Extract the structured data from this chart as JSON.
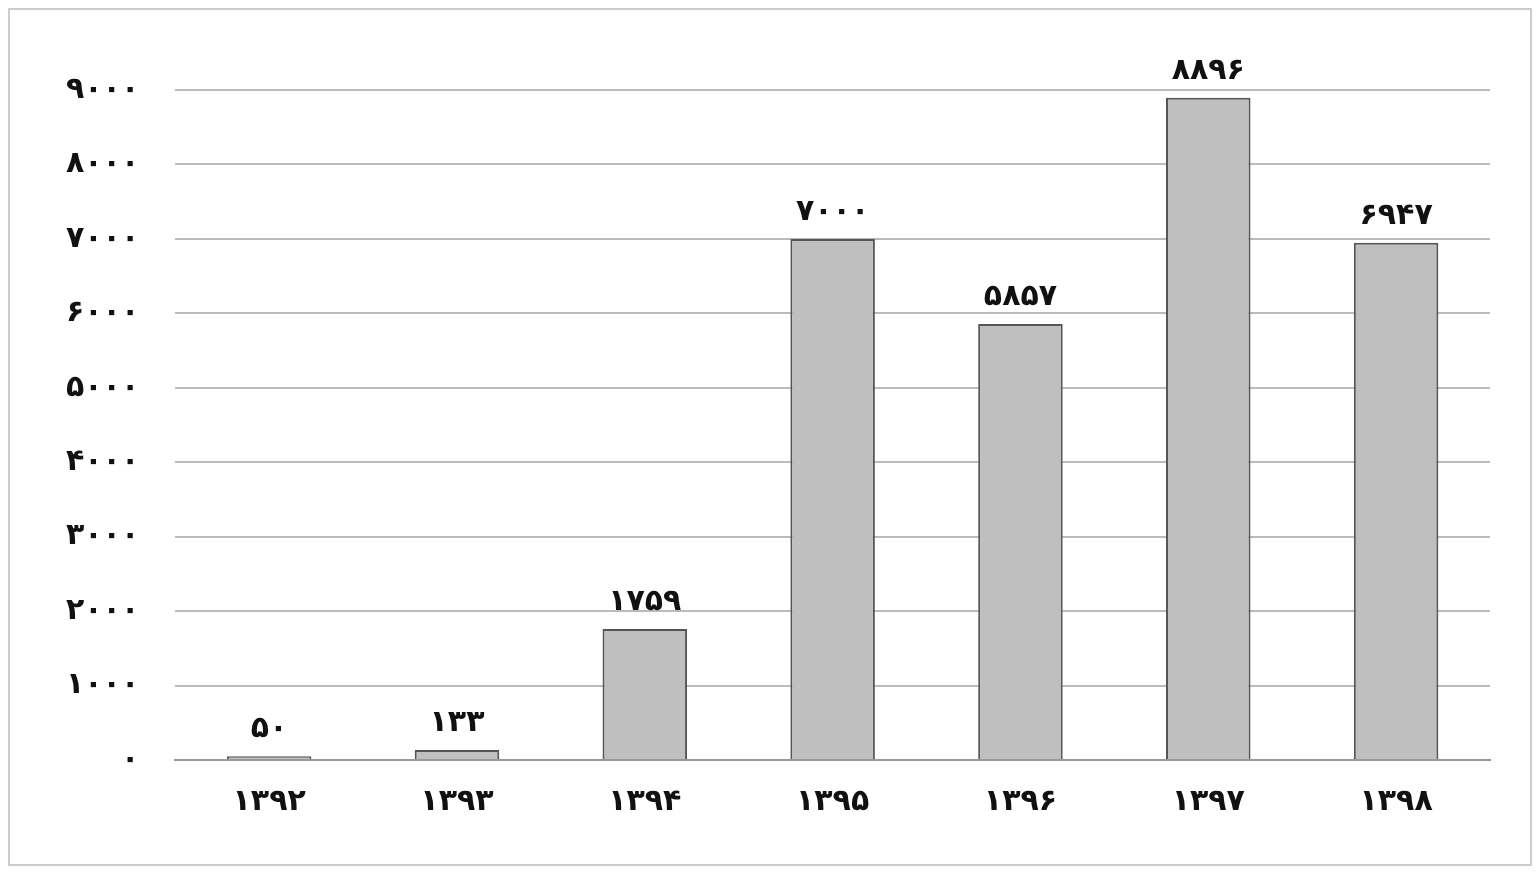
{
  "chart_data": {
    "type": "bar",
    "categories": [
      "۱۳۹۲",
      "۱۳۹۳",
      "۱۳۹۴",
      "۱۳۹۵",
      "۱۳۹۶",
      "۱۳۹۷",
      "۱۳۹۸"
    ],
    "values": [
      50,
      133,
      1759,
      7000,
      5857,
      8896,
      6947
    ],
    "value_labels": [
      "۵۰",
      "۱۳۳",
      "۱۷۵۹",
      "۷۰۰۰",
      "۵۸۵۷",
      "۸۸۹۶",
      "۶۹۴۷"
    ],
    "color": "#bfbfbf",
    "ylim": [
      0,
      9000
    ],
    "yticks": [
      {
        "value": 0,
        "label": "۰"
      },
      {
        "value": 1000,
        "label": "۱۰۰۰"
      },
      {
        "value": 2000,
        "label": "۲۰۰۰"
      },
      {
        "value": 3000,
        "label": "۳۰۰۰"
      },
      {
        "value": 4000,
        "label": "۴۰۰۰"
      },
      {
        "value": 5000,
        "label": "۵۰۰۰"
      },
      {
        "value": 6000,
        "label": "۶۰۰۰"
      },
      {
        "value": 7000,
        "label": "۷۰۰۰"
      },
      {
        "value": 8000,
        "label": "۸۰۰۰"
      },
      {
        "value": 9000,
        "label": "۹۰۰۰"
      }
    ],
    "grid": "y",
    "legend": false
  }
}
